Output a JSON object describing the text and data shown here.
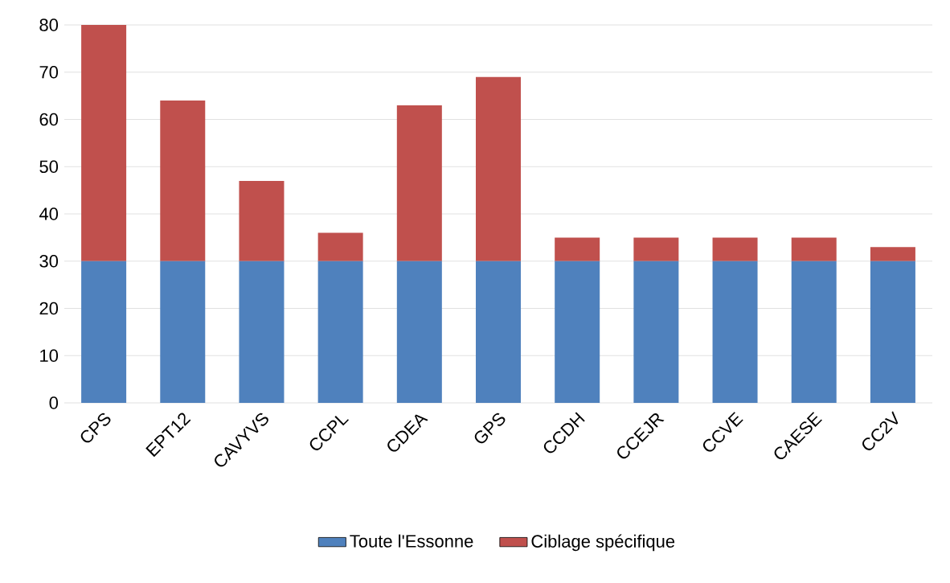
{
  "chart_data": {
    "type": "bar",
    "stacked": true,
    "categories": [
      "CPS",
      "EPT12",
      "CAVYVS",
      "CCPL",
      "CDEA",
      "GPS",
      "CCDH",
      "CCEJR",
      "CCVE",
      "CAESE",
      "CC2V"
    ],
    "series": [
      {
        "name": "Toute l'Essonne",
        "color": "#4f81bd",
        "values": [
          30,
          30,
          30,
          30,
          30,
          30,
          30,
          30,
          30,
          30,
          30
        ]
      },
      {
        "name": "Ciblage spécifique",
        "color": "#c0504d",
        "values": [
          50,
          34,
          17,
          6,
          33,
          39,
          5,
          5,
          5,
          5,
          3
        ]
      }
    ],
    "ylim": [
      0,
      80
    ],
    "yticks": [
      0,
      10,
      20,
      30,
      40,
      50,
      60,
      70,
      80
    ],
    "grid": "y",
    "legend": "bottom"
  }
}
